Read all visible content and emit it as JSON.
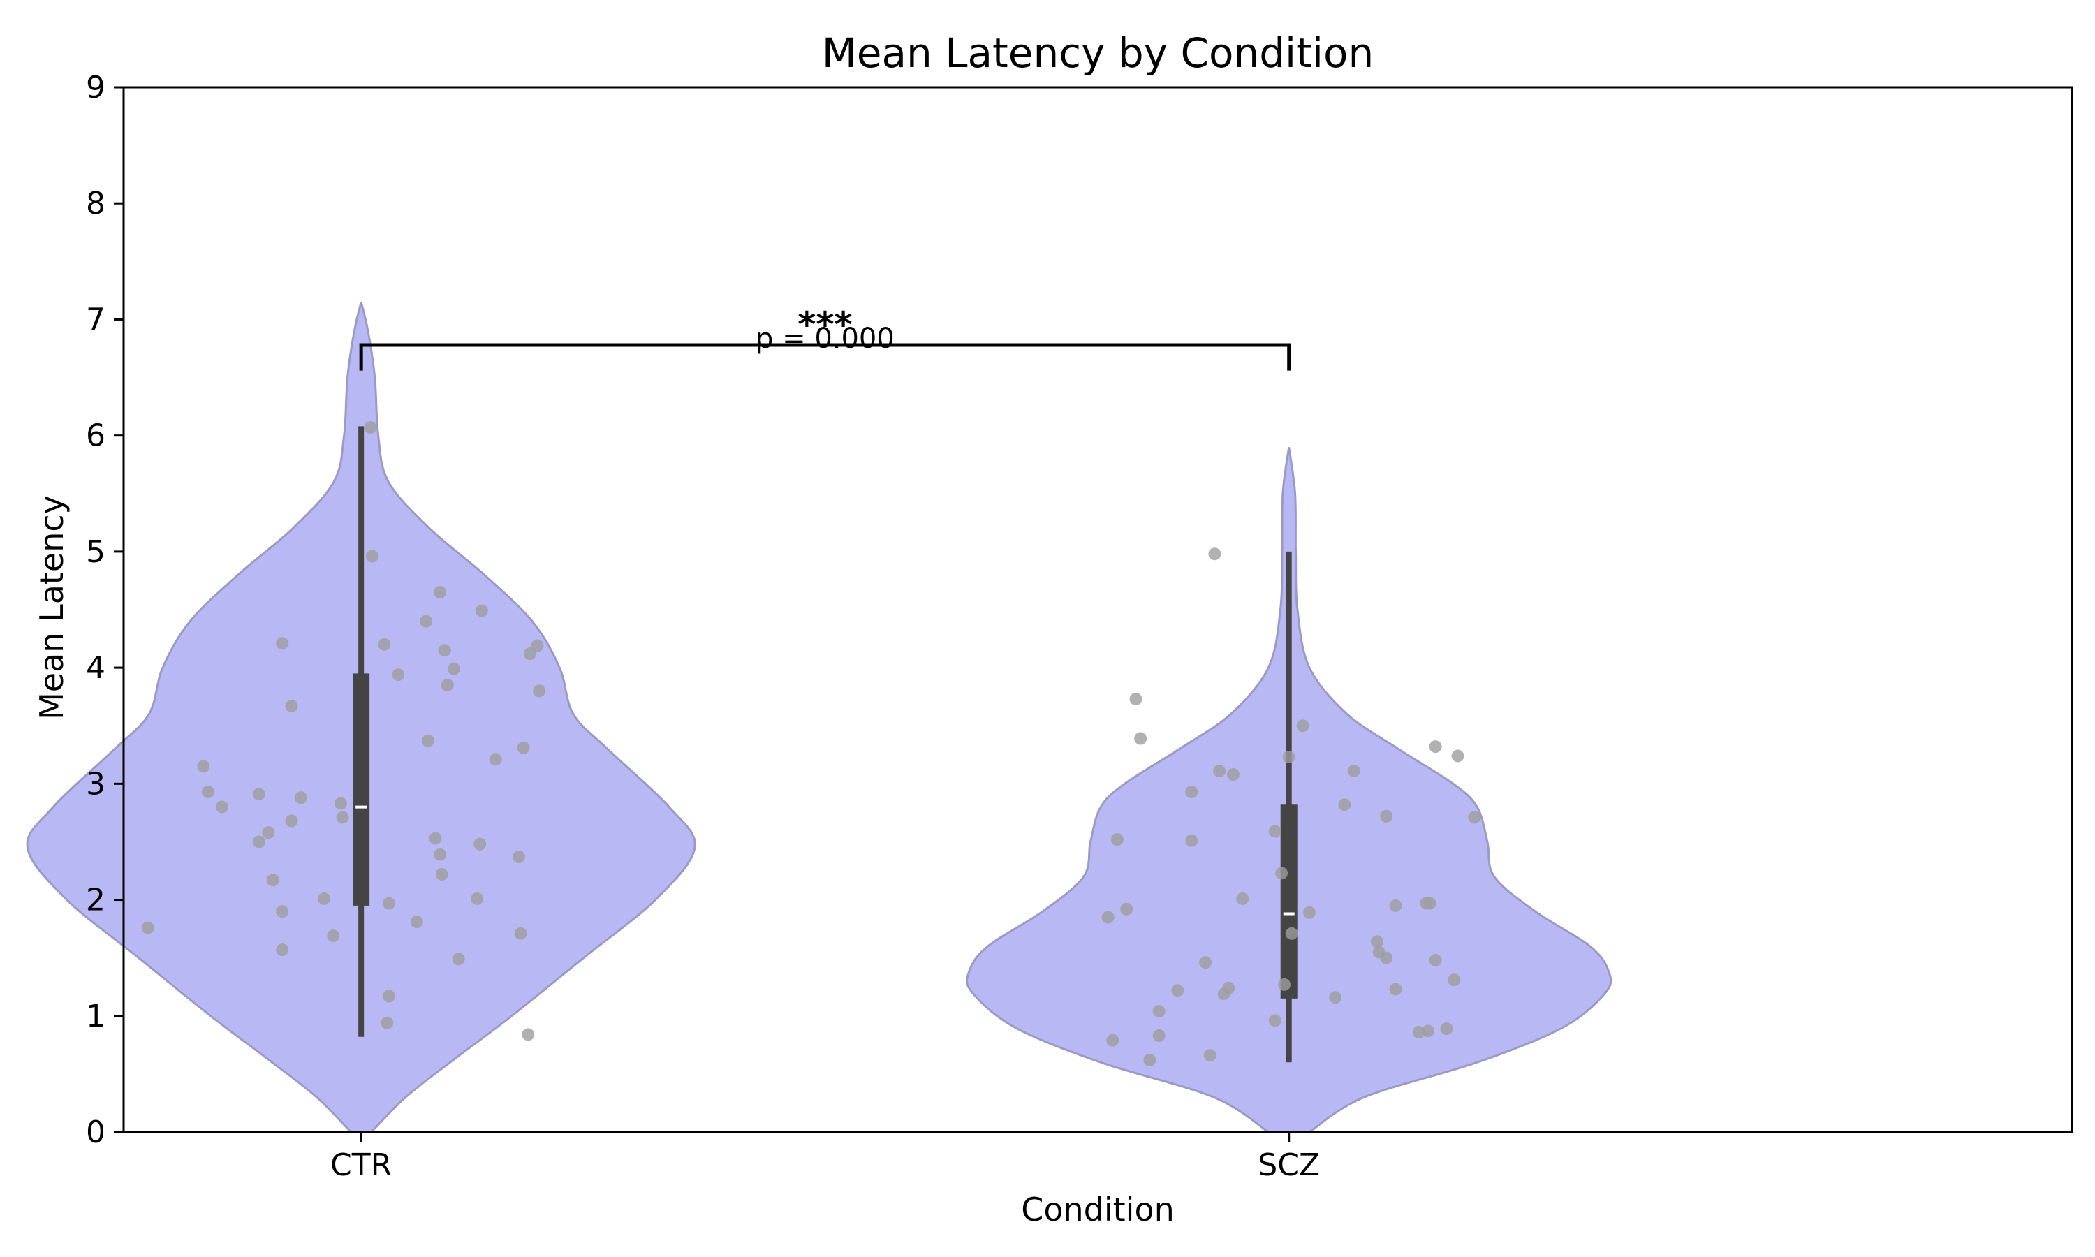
{
  "chart_data": {
    "type": "violin",
    "title": "Mean Latency by Condition",
    "xlabel": "Condition",
    "ylabel": "Mean Latency",
    "ylim": [
      0,
      9
    ],
    "yticks": [
      0,
      1,
      2,
      3,
      4,
      5,
      6,
      7,
      8,
      9
    ],
    "grid": false,
    "colors": {
      "violin_fill": "#b8b8f4",
      "violin_edge": "#9a9ac6",
      "box": "#444444",
      "median": "#ffffff",
      "points": "#9e9e9e",
      "bracket": "#000000"
    },
    "categories": [
      "CTR",
      "SCZ"
    ],
    "groups": [
      {
        "category": "CTR",
        "density_profile": [
          [
            0.0,
            0.03
          ],
          [
            0.3,
            0.13
          ],
          [
            0.6,
            0.26
          ],
          [
            1.0,
            0.44
          ],
          [
            1.5,
            0.65
          ],
          [
            2.0,
            0.86
          ],
          [
            2.45,
            0.975
          ],
          [
            2.8,
            0.9
          ],
          [
            3.3,
            0.72
          ],
          [
            3.6,
            0.62
          ],
          [
            4.0,
            0.58
          ],
          [
            4.4,
            0.5
          ],
          [
            4.8,
            0.36
          ],
          [
            5.2,
            0.2
          ],
          [
            5.6,
            0.08
          ],
          [
            6.0,
            0.05
          ],
          [
            6.5,
            0.04
          ],
          [
            6.9,
            0.02
          ],
          [
            7.15,
            0.0
          ]
        ],
        "box": {
          "whisker_low": 0.82,
          "q1": 1.95,
          "median": 2.8,
          "q3": 3.95,
          "whisker_high": 6.08
        },
        "points": [
          [
            -0.23,
            1.76
          ],
          [
            -0.17,
            3.15
          ],
          [
            -0.165,
            2.93
          ],
          [
            -0.15,
            2.8
          ],
          [
            -0.11,
            2.91
          ],
          [
            -0.11,
            2.5
          ],
          [
            -0.1,
            2.58
          ],
          [
            -0.095,
            2.17
          ],
          [
            -0.085,
            1.9
          ],
          [
            -0.085,
            1.57
          ],
          [
            -0.085,
            4.21
          ],
          [
            -0.075,
            3.67
          ],
          [
            -0.075,
            2.68
          ],
          [
            -0.065,
            2.88
          ],
          [
            -0.04,
            2.01
          ],
          [
            -0.03,
            1.69
          ],
          [
            -0.022,
            2.83
          ],
          [
            -0.02,
            2.71
          ],
          [
            0.01,
            6.07
          ],
          [
            0.012,
            4.96
          ],
          [
            0.025,
            4.2
          ],
          [
            0.03,
            1.97
          ],
          [
            0.03,
            1.17
          ],
          [
            0.028,
            0.94
          ],
          [
            0.04,
            3.94
          ],
          [
            0.06,
            1.81
          ],
          [
            0.07,
            4.4
          ],
          [
            0.072,
            3.37
          ],
          [
            0.08,
            2.53
          ],
          [
            0.085,
            2.39
          ],
          [
            0.085,
            4.65
          ],
          [
            0.087,
            2.22
          ],
          [
            0.09,
            4.15
          ],
          [
            0.093,
            3.85
          ],
          [
            0.1,
            3.99
          ],
          [
            0.105,
            1.49
          ],
          [
            0.125,
            2.01
          ],
          [
            0.128,
            2.48
          ],
          [
            0.13,
            4.49
          ],
          [
            0.145,
            3.21
          ],
          [
            0.17,
            2.37
          ],
          [
            0.172,
            1.71
          ],
          [
            0.175,
            3.31
          ],
          [
            0.18,
            0.84
          ],
          [
            0.182,
            4.12
          ],
          [
            0.19,
            4.19
          ],
          [
            0.192,
            3.8
          ]
        ]
      },
      {
        "category": "SCZ",
        "density_profile": [
          [
            0.0,
            0.06
          ],
          [
            0.3,
            0.22
          ],
          [
            0.6,
            0.55
          ],
          [
            0.9,
            0.8
          ],
          [
            1.2,
            0.925
          ],
          [
            1.38,
            0.935
          ],
          [
            1.6,
            0.88
          ],
          [
            1.9,
            0.72
          ],
          [
            2.2,
            0.6
          ],
          [
            2.5,
            0.58
          ],
          [
            2.8,
            0.55
          ],
          [
            3.0,
            0.48
          ],
          [
            3.3,
            0.32
          ],
          [
            3.6,
            0.17
          ],
          [
            4.0,
            0.06
          ],
          [
            4.5,
            0.025
          ],
          [
            5.0,
            0.02
          ],
          [
            5.5,
            0.018
          ],
          [
            5.9,
            0.0
          ]
        ],
        "box": {
          "whisker_low": 0.6,
          "q1": 1.15,
          "median": 1.88,
          "q3": 2.82,
          "whisker_high": 5.0
        },
        "points": [
          [
            -0.195,
            1.85
          ],
          [
            -0.19,
            0.79
          ],
          [
            -0.185,
            2.52
          ],
          [
            -0.175,
            1.92
          ],
          [
            -0.16,
            3.39
          ],
          [
            -0.165,
            3.73
          ],
          [
            -0.15,
            0.62
          ],
          [
            -0.14,
            0.83
          ],
          [
            -0.14,
            1.04
          ],
          [
            -0.12,
            1.22
          ],
          [
            -0.105,
            2.93
          ],
          [
            -0.105,
            2.51
          ],
          [
            -0.09,
            1.46
          ],
          [
            -0.085,
            0.66
          ],
          [
            -0.08,
            4.98
          ],
          [
            -0.075,
            3.11
          ],
          [
            -0.07,
            1.19
          ],
          [
            -0.065,
            1.24
          ],
          [
            -0.06,
            3.08
          ],
          [
            -0.05,
            2.01
          ],
          [
            -0.015,
            2.59
          ],
          [
            -0.015,
            0.96
          ],
          [
            -0.008,
            2.23
          ],
          [
            -0.005,
            1.27
          ],
          [
            0.0,
            3.23
          ],
          [
            0.003,
            1.71
          ],
          [
            0.015,
            3.5
          ],
          [
            0.022,
            1.89
          ],
          [
            0.05,
            1.16
          ],
          [
            0.06,
            2.82
          ],
          [
            0.07,
            3.11
          ],
          [
            0.095,
            1.64
          ],
          [
            0.097,
            1.55
          ],
          [
            0.105,
            1.5
          ],
          [
            0.105,
            2.72
          ],
          [
            0.115,
            1.23
          ],
          [
            0.115,
            1.95
          ],
          [
            0.14,
            0.86
          ],
          [
            0.148,
            1.97
          ],
          [
            0.15,
            0.87
          ],
          [
            0.152,
            1.97
          ],
          [
            0.158,
            3.32
          ],
          [
            0.158,
            1.48
          ],
          [
            0.17,
            0.89
          ],
          [
            0.178,
            1.31
          ],
          [
            0.182,
            3.24
          ],
          [
            0.2,
            2.71
          ]
        ]
      }
    ],
    "annotation": {
      "from": "CTR",
      "to": "SCZ",
      "y": 6.78,
      "drop": 0.22,
      "stars": "***",
      "p_text": "p = 0.000"
    }
  }
}
